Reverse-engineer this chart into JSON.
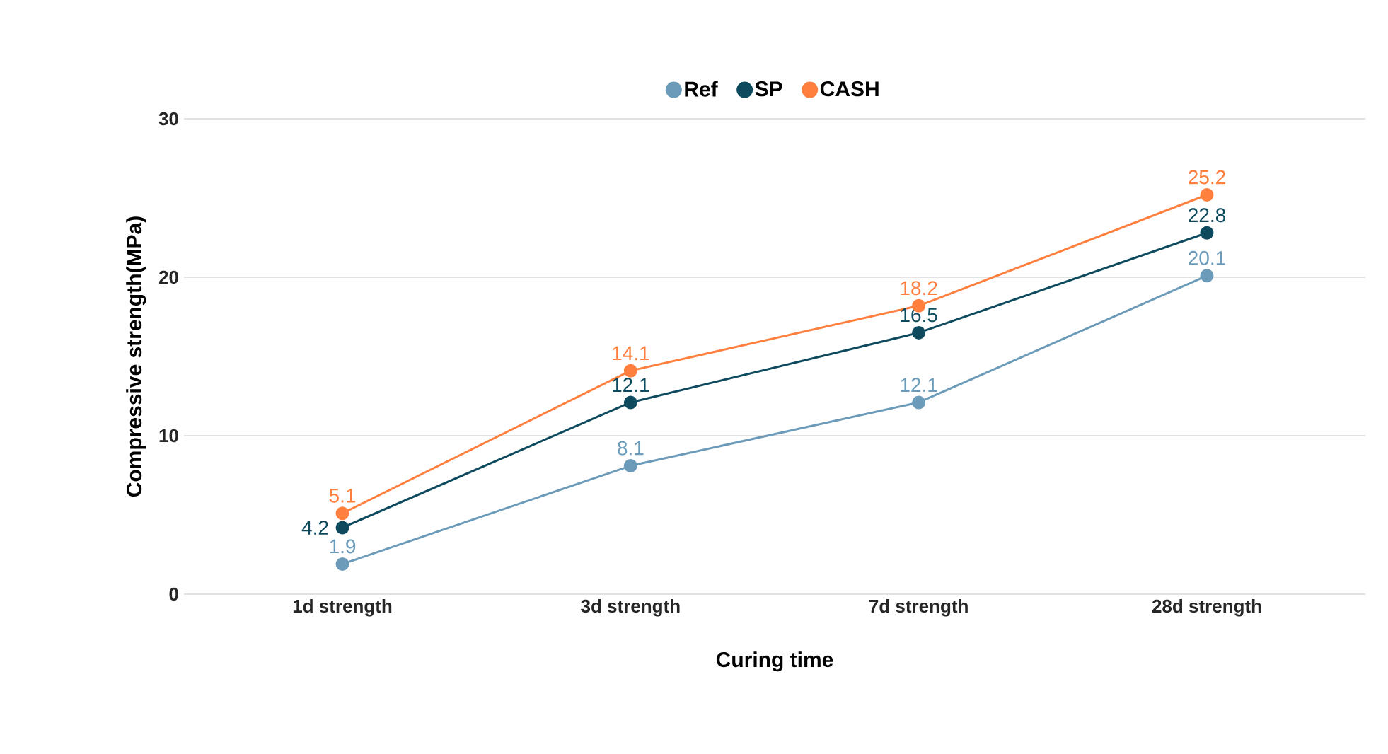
{
  "chart_data": {
    "type": "line",
    "xlabel": "Curing time",
    "ylabel": "Compressive strength(MPa)",
    "categories": [
      "1d strength",
      "3d strength",
      "7d strength",
      "28d strength"
    ],
    "series": [
      {
        "name": "Ref",
        "color": "#6b9bb8",
        "values": [
          1.9,
          8.1,
          12.1,
          20.1
        ]
      },
      {
        "name": "SP",
        "color": "#0e4a5e",
        "values": [
          4.2,
          12.1,
          16.5,
          22.8
        ]
      },
      {
        "name": "CASH",
        "color": "#ff7f3e",
        "values": [
          5.1,
          14.1,
          18.2,
          25.2
        ]
      }
    ],
    "ylim": [
      0,
      30
    ],
    "yticks": [
      0,
      10,
      20,
      30
    ],
    "grid": "y",
    "legend": "top",
    "marker": "circle",
    "line_style": "solid",
    "data_labels": true
  }
}
